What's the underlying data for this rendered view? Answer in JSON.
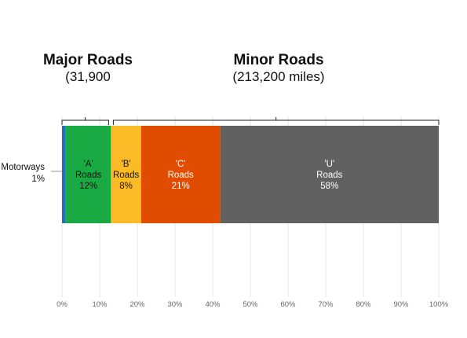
{
  "chart_data": {
    "type": "bar",
    "orientation": "horizontal",
    "stacked": true,
    "title": "",
    "xlabel": "",
    "ylabel": "",
    "xlim": [
      0,
      100
    ],
    "x_ticks": [
      "0%",
      "10%",
      "20%",
      "30%",
      "40%",
      "50%",
      "60%",
      "70%",
      "80%",
      "90%",
      "100%"
    ],
    "grid": true,
    "segments": [
      {
        "key": "motorways",
        "label_lines": [],
        "value": 1,
        "color": "#1f6fbf",
        "text_color": "#111111"
      },
      {
        "key": "a-roads",
        "label_lines": [
          "'A'",
          "Roads",
          "12%"
        ],
        "value": 12,
        "color": "#1aaa44",
        "text_color": "#111111"
      },
      {
        "key": "b-roads",
        "label_lines": [
          "'B'",
          "Roads",
          "8%"
        ],
        "value": 8,
        "color": "#fbbb26",
        "text_color": "#111111"
      },
      {
        "key": "c-roads",
        "label_lines": [
          "'C'",
          "Roads",
          "21%"
        ],
        "value": 21,
        "color": "#e04d00",
        "text_color": "#ffffff"
      },
      {
        "key": "u-roads",
        "label_lines": [
          "'U'",
          "Roads",
          "58%"
        ],
        "value": 58,
        "color": "#616161",
        "text_color": "#ffffff"
      }
    ],
    "outside_label": {
      "segment": "motorways",
      "lines": [
        "Motorways",
        "1%"
      ]
    },
    "groups": [
      {
        "key": "major",
        "name": "Major Roads",
        "sub": "(31,900",
        "from": 0,
        "to": 13
      },
      {
        "key": "minor",
        "name": "Minor Roads",
        "sub": "(213,200 miles)",
        "from": 13,
        "to": 100
      }
    ]
  }
}
